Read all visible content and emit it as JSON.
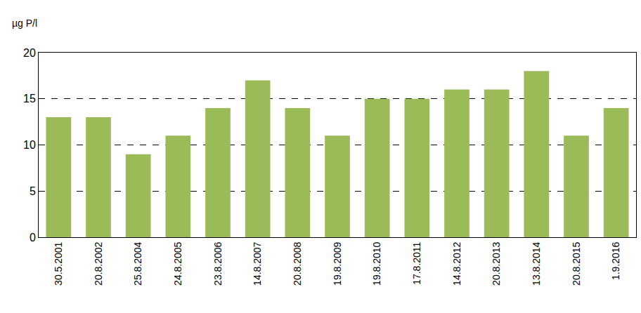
{
  "chart_data": {
    "type": "bar",
    "ylabel": "µg P/l",
    "categories": [
      "30.5.2001",
      "20.8.2002",
      "25.8.2004",
      "24.8.2005",
      "23.8.2006",
      "14.8.2007",
      "20.8.2008",
      "19.8.2009",
      "19.8.2010",
      "17.8.2011",
      "14.8.2012",
      "20.8.2013",
      "13.8.2014",
      "20.8.2015",
      "1.9.2016"
    ],
    "values": [
      13,
      13,
      9,
      11,
      14,
      17,
      14,
      11,
      15,
      15,
      16,
      16,
      18,
      11,
      14
    ],
    "color": "#9bbb59",
    "ylim": [
      0,
      20
    ],
    "yticks": [
      0,
      5,
      10,
      15,
      20
    ],
    "grid": true
  }
}
